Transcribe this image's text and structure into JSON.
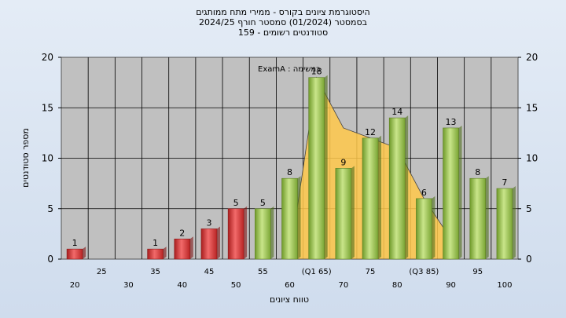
{
  "chart_data": {
    "type": "bar",
    "title": [
      "היסטוגרמת ציונים בקורס - ממירי מתח ממותגים",
      "בסמסטר  (01/2024)  סמסטר חורף 2024/25",
      "סטודנטים רשומים - 159"
    ],
    "xlabel": "טווח ציונים",
    "ylabel": "מספר סטודנטים",
    "ylim": [
      0,
      20
    ],
    "yticks": [
      0,
      5,
      10,
      15,
      20
    ],
    "legend_label": "במשימה : ExamA",
    "categories": [
      20,
      25,
      30,
      35,
      40,
      45,
      50,
      55,
      60,
      65,
      70,
      75,
      80,
      85,
      90,
      95,
      100
    ],
    "x_tick_labels": [
      "20",
      "25",
      "30",
      "35",
      "40",
      "45",
      "50",
      "55",
      "60",
      "(Q1 65)",
      "70",
      "75",
      "80",
      "(Q3 85)",
      "90",
      "95",
      "100"
    ],
    "values": [
      1,
      0,
      0,
      1,
      2,
      3,
      5,
      5,
      8,
      18,
      9,
      12,
      14,
      6,
      13,
      8,
      7
    ],
    "data_labels": [
      "1",
      "",
      "",
      "1",
      "2",
      "3",
      "5",
      "5",
      "8",
      "18",
      "9",
      "12",
      "14",
      "6",
      "13",
      "8",
      "7"
    ],
    "bar_colors": [
      "#e03a3a",
      "#e03a3a",
      "#e03a3a",
      "#e03a3a",
      "#e03a3a",
      "#e03a3a",
      "#e03a3a",
      "#9cc44a",
      "#9cc44a",
      "#9cc44a",
      "#9cc44a",
      "#9cc44a",
      "#9cc44a",
      "#9cc44a",
      "#9cc44a",
      "#9cc44a",
      "#9cc44a"
    ],
    "area_series": {
      "x": [
        60,
        65,
        70,
        75,
        80,
        85,
        90
      ],
      "y": [
        0,
        18,
        13,
        12,
        11,
        6,
        2
      ]
    },
    "colors": {
      "plot_bg": "#c0c0c0",
      "grid": "#000000",
      "area_fill": "#ffc84a",
      "fail_bar": "#e03a3a",
      "pass_bar": "#9cc44a"
    },
    "grid": true
  }
}
